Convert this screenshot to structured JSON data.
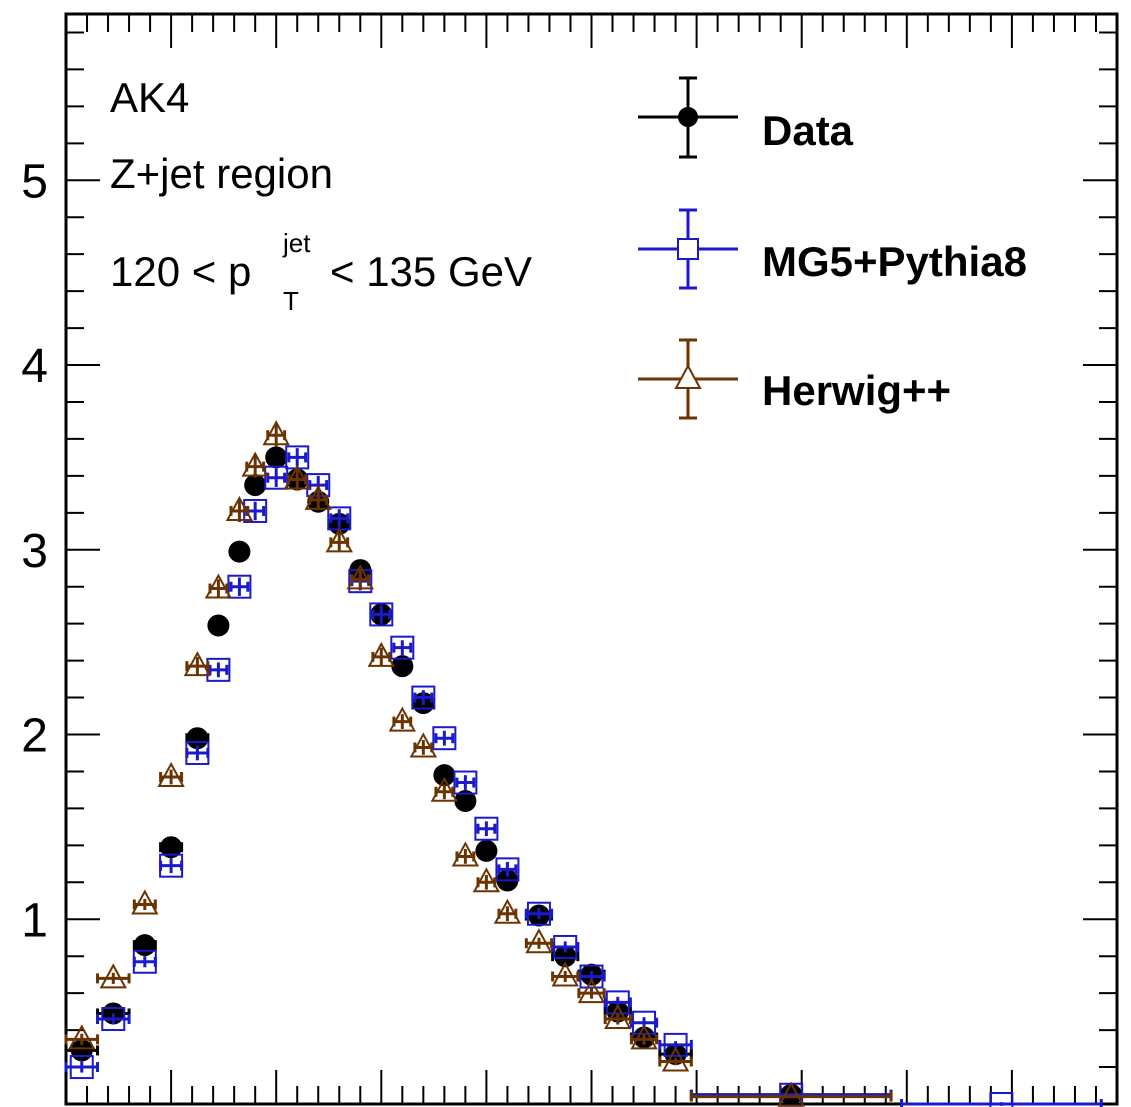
{
  "chart_data": {
    "type": "scatter",
    "title": "",
    "xlabel": "",
    "ylabel": "",
    "xlim": [
      0,
      1
    ],
    "ylim": [
      0,
      5.9
    ],
    "y_ticks": [
      1,
      2,
      3,
      4,
      5
    ],
    "grid": false,
    "legend_position": "top-right",
    "annotations": {
      "algo": "AK4",
      "region": "Z+jet region",
      "pt_left": "120 < p",
      "pt_sup": "jet",
      "pt_sub": "T",
      "pt_right": "< 135 GeV"
    },
    "series": [
      {
        "name": "Data",
        "marker": "filled-circle",
        "color": "#000000",
        "points": [
          {
            "x": 0.015,
            "xerr": 0.015,
            "y": 0.29,
            "yerr": 0.03
          },
          {
            "x": 0.045,
            "xerr": 0.015,
            "y": 0.49,
            "yerr": 0.03
          },
          {
            "x": 0.075,
            "xerr": 0.01,
            "y": 0.86,
            "yerr": 0.03
          },
          {
            "x": 0.1,
            "xerr": 0.01,
            "y": 1.39,
            "yerr": 0.04
          },
          {
            "x": 0.125,
            "xerr": 0.01,
            "y": 1.98,
            "yerr": 0.04
          },
          {
            "x": 0.145,
            "xerr": 0.008,
            "y": 2.59,
            "yerr": 0.04
          },
          {
            "x": 0.165,
            "xerr": 0.008,
            "y": 2.99,
            "yerr": 0.05
          },
          {
            "x": 0.18,
            "xerr": 0.008,
            "y": 3.35,
            "yerr": 0.05
          },
          {
            "x": 0.2,
            "xerr": 0.008,
            "y": 3.5,
            "yerr": 0.05
          },
          {
            "x": 0.22,
            "xerr": 0.008,
            "y": 3.38,
            "yerr": 0.05
          },
          {
            "x": 0.24,
            "xerr": 0.008,
            "y": 3.26,
            "yerr": 0.05
          },
          {
            "x": 0.26,
            "xerr": 0.008,
            "y": 3.14,
            "yerr": 0.05
          },
          {
            "x": 0.28,
            "xerr": 0.008,
            "y": 2.89,
            "yerr": 0.05
          },
          {
            "x": 0.3,
            "xerr": 0.008,
            "y": 2.65,
            "yerr": 0.05
          },
          {
            "x": 0.32,
            "xerr": 0.008,
            "y": 2.37,
            "yerr": 0.04
          },
          {
            "x": 0.34,
            "xerr": 0.008,
            "y": 2.17,
            "yerr": 0.04
          },
          {
            "x": 0.36,
            "xerr": 0.008,
            "y": 1.78,
            "yerr": 0.04
          },
          {
            "x": 0.38,
            "xerr": 0.008,
            "y": 1.64,
            "yerr": 0.04
          },
          {
            "x": 0.4,
            "xerr": 0.008,
            "y": 1.37,
            "yerr": 0.04
          },
          {
            "x": 0.42,
            "xerr": 0.008,
            "y": 1.21,
            "yerr": 0.04
          },
          {
            "x": 0.45,
            "xerr": 0.012,
            "y": 1.02,
            "yerr": 0.03
          },
          {
            "x": 0.475,
            "xerr": 0.012,
            "y": 0.8,
            "yerr": 0.03
          },
          {
            "x": 0.5,
            "xerr": 0.012,
            "y": 0.7,
            "yerr": 0.03
          },
          {
            "x": 0.525,
            "xerr": 0.012,
            "y": 0.5,
            "yerr": 0.03
          },
          {
            "x": 0.55,
            "xerr": 0.012,
            "y": 0.36,
            "yerr": 0.03
          },
          {
            "x": 0.58,
            "xerr": 0.015,
            "y": 0.27,
            "yerr": 0.02
          },
          {
            "x": 0.69,
            "xerr": 0.095,
            "y": 0.05,
            "yerr": 0.01
          }
        ]
      },
      {
        "name": "MG5+Pythia8",
        "marker": "open-square",
        "color": "#1a1acc",
        "points": [
          {
            "x": 0.015,
            "xerr": 0.015,
            "y": 0.2,
            "yerr": 0.03
          },
          {
            "x": 0.045,
            "xerr": 0.015,
            "y": 0.46,
            "yerr": 0.03
          },
          {
            "x": 0.075,
            "xerr": 0.01,
            "y": 0.77,
            "yerr": 0.03
          },
          {
            "x": 0.1,
            "xerr": 0.01,
            "y": 1.29,
            "yerr": 0.04
          },
          {
            "x": 0.125,
            "xerr": 0.01,
            "y": 1.9,
            "yerr": 0.04
          },
          {
            "x": 0.145,
            "xerr": 0.008,
            "y": 2.35,
            "yerr": 0.04
          },
          {
            "x": 0.165,
            "xerr": 0.008,
            "y": 2.8,
            "yerr": 0.05
          },
          {
            "x": 0.18,
            "xerr": 0.008,
            "y": 3.21,
            "yerr": 0.05
          },
          {
            "x": 0.2,
            "xerr": 0.008,
            "y": 3.39,
            "yerr": 0.05
          },
          {
            "x": 0.22,
            "xerr": 0.008,
            "y": 3.5,
            "yerr": 0.05
          },
          {
            "x": 0.24,
            "xerr": 0.008,
            "y": 3.35,
            "yerr": 0.05
          },
          {
            "x": 0.26,
            "xerr": 0.008,
            "y": 3.17,
            "yerr": 0.05
          },
          {
            "x": 0.28,
            "xerr": 0.008,
            "y": 2.83,
            "yerr": 0.05
          },
          {
            "x": 0.3,
            "xerr": 0.008,
            "y": 2.65,
            "yerr": 0.05
          },
          {
            "x": 0.32,
            "xerr": 0.008,
            "y": 2.47,
            "yerr": 0.04
          },
          {
            "x": 0.34,
            "xerr": 0.008,
            "y": 2.2,
            "yerr": 0.04
          },
          {
            "x": 0.36,
            "xerr": 0.008,
            "y": 1.98,
            "yerr": 0.04
          },
          {
            "x": 0.38,
            "xerr": 0.008,
            "y": 1.74,
            "yerr": 0.04
          },
          {
            "x": 0.4,
            "xerr": 0.008,
            "y": 1.49,
            "yerr": 0.04
          },
          {
            "x": 0.42,
            "xerr": 0.008,
            "y": 1.27,
            "yerr": 0.04
          },
          {
            "x": 0.45,
            "xerr": 0.012,
            "y": 1.03,
            "yerr": 0.03
          },
          {
            "x": 0.475,
            "xerr": 0.012,
            "y": 0.85,
            "yerr": 0.03
          },
          {
            "x": 0.5,
            "xerr": 0.012,
            "y": 0.69,
            "yerr": 0.03
          },
          {
            "x": 0.525,
            "xerr": 0.012,
            "y": 0.55,
            "yerr": 0.03
          },
          {
            "x": 0.55,
            "xerr": 0.012,
            "y": 0.44,
            "yerr": 0.03
          },
          {
            "x": 0.58,
            "xerr": 0.015,
            "y": 0.32,
            "yerr": 0.02
          },
          {
            "x": 0.69,
            "xerr": 0.095,
            "y": 0.05,
            "yerr": 0.01
          },
          {
            "x": 0.89,
            "xerr": 0.095,
            "y": 0.0,
            "yerr": 0.01
          }
        ]
      },
      {
        "name": "Herwig++",
        "marker": "open-triangle",
        "color": "#6b3300",
        "points": [
          {
            "x": 0.015,
            "xerr": 0.015,
            "y": 0.35,
            "yerr": 0.03
          },
          {
            "x": 0.045,
            "xerr": 0.015,
            "y": 0.68,
            "yerr": 0.03
          },
          {
            "x": 0.075,
            "xerr": 0.01,
            "y": 1.08,
            "yerr": 0.03
          },
          {
            "x": 0.1,
            "xerr": 0.01,
            "y": 1.77,
            "yerr": 0.04
          },
          {
            "x": 0.125,
            "xerr": 0.01,
            "y": 2.37,
            "yerr": 0.05
          },
          {
            "x": 0.145,
            "xerr": 0.008,
            "y": 2.79,
            "yerr": 0.05
          },
          {
            "x": 0.165,
            "xerr": 0.008,
            "y": 3.21,
            "yerr": 0.06
          },
          {
            "x": 0.18,
            "xerr": 0.008,
            "y": 3.45,
            "yerr": 0.06
          },
          {
            "x": 0.2,
            "xerr": 0.008,
            "y": 3.62,
            "yerr": 0.06
          },
          {
            "x": 0.22,
            "xerr": 0.008,
            "y": 3.38,
            "yerr": 0.06
          },
          {
            "x": 0.24,
            "xerr": 0.008,
            "y": 3.27,
            "yerr": 0.05
          },
          {
            "x": 0.26,
            "xerr": 0.008,
            "y": 3.04,
            "yerr": 0.05
          },
          {
            "x": 0.28,
            "xerr": 0.008,
            "y": 2.84,
            "yerr": 0.05
          },
          {
            "x": 0.3,
            "xerr": 0.008,
            "y": 2.42,
            "yerr": 0.05
          },
          {
            "x": 0.32,
            "xerr": 0.008,
            "y": 2.07,
            "yerr": 0.04
          },
          {
            "x": 0.34,
            "xerr": 0.008,
            "y": 1.93,
            "yerr": 0.04
          },
          {
            "x": 0.36,
            "xerr": 0.008,
            "y": 1.69,
            "yerr": 0.04
          },
          {
            "x": 0.38,
            "xerr": 0.008,
            "y": 1.34,
            "yerr": 0.04
          },
          {
            "x": 0.4,
            "xerr": 0.008,
            "y": 1.2,
            "yerr": 0.04
          },
          {
            "x": 0.42,
            "xerr": 0.008,
            "y": 1.03,
            "yerr": 0.04
          },
          {
            "x": 0.45,
            "xerr": 0.012,
            "y": 0.87,
            "yerr": 0.03
          },
          {
            "x": 0.475,
            "xerr": 0.012,
            "y": 0.69,
            "yerr": 0.03
          },
          {
            "x": 0.5,
            "xerr": 0.012,
            "y": 0.6,
            "yerr": 0.03
          },
          {
            "x": 0.525,
            "xerr": 0.012,
            "y": 0.46,
            "yerr": 0.03
          },
          {
            "x": 0.55,
            "xerr": 0.012,
            "y": 0.35,
            "yerr": 0.03
          },
          {
            "x": 0.58,
            "xerr": 0.015,
            "y": 0.23,
            "yerr": 0.02
          },
          {
            "x": 0.69,
            "xerr": 0.095,
            "y": 0.04,
            "yerr": 0.01
          }
        ]
      }
    ]
  }
}
